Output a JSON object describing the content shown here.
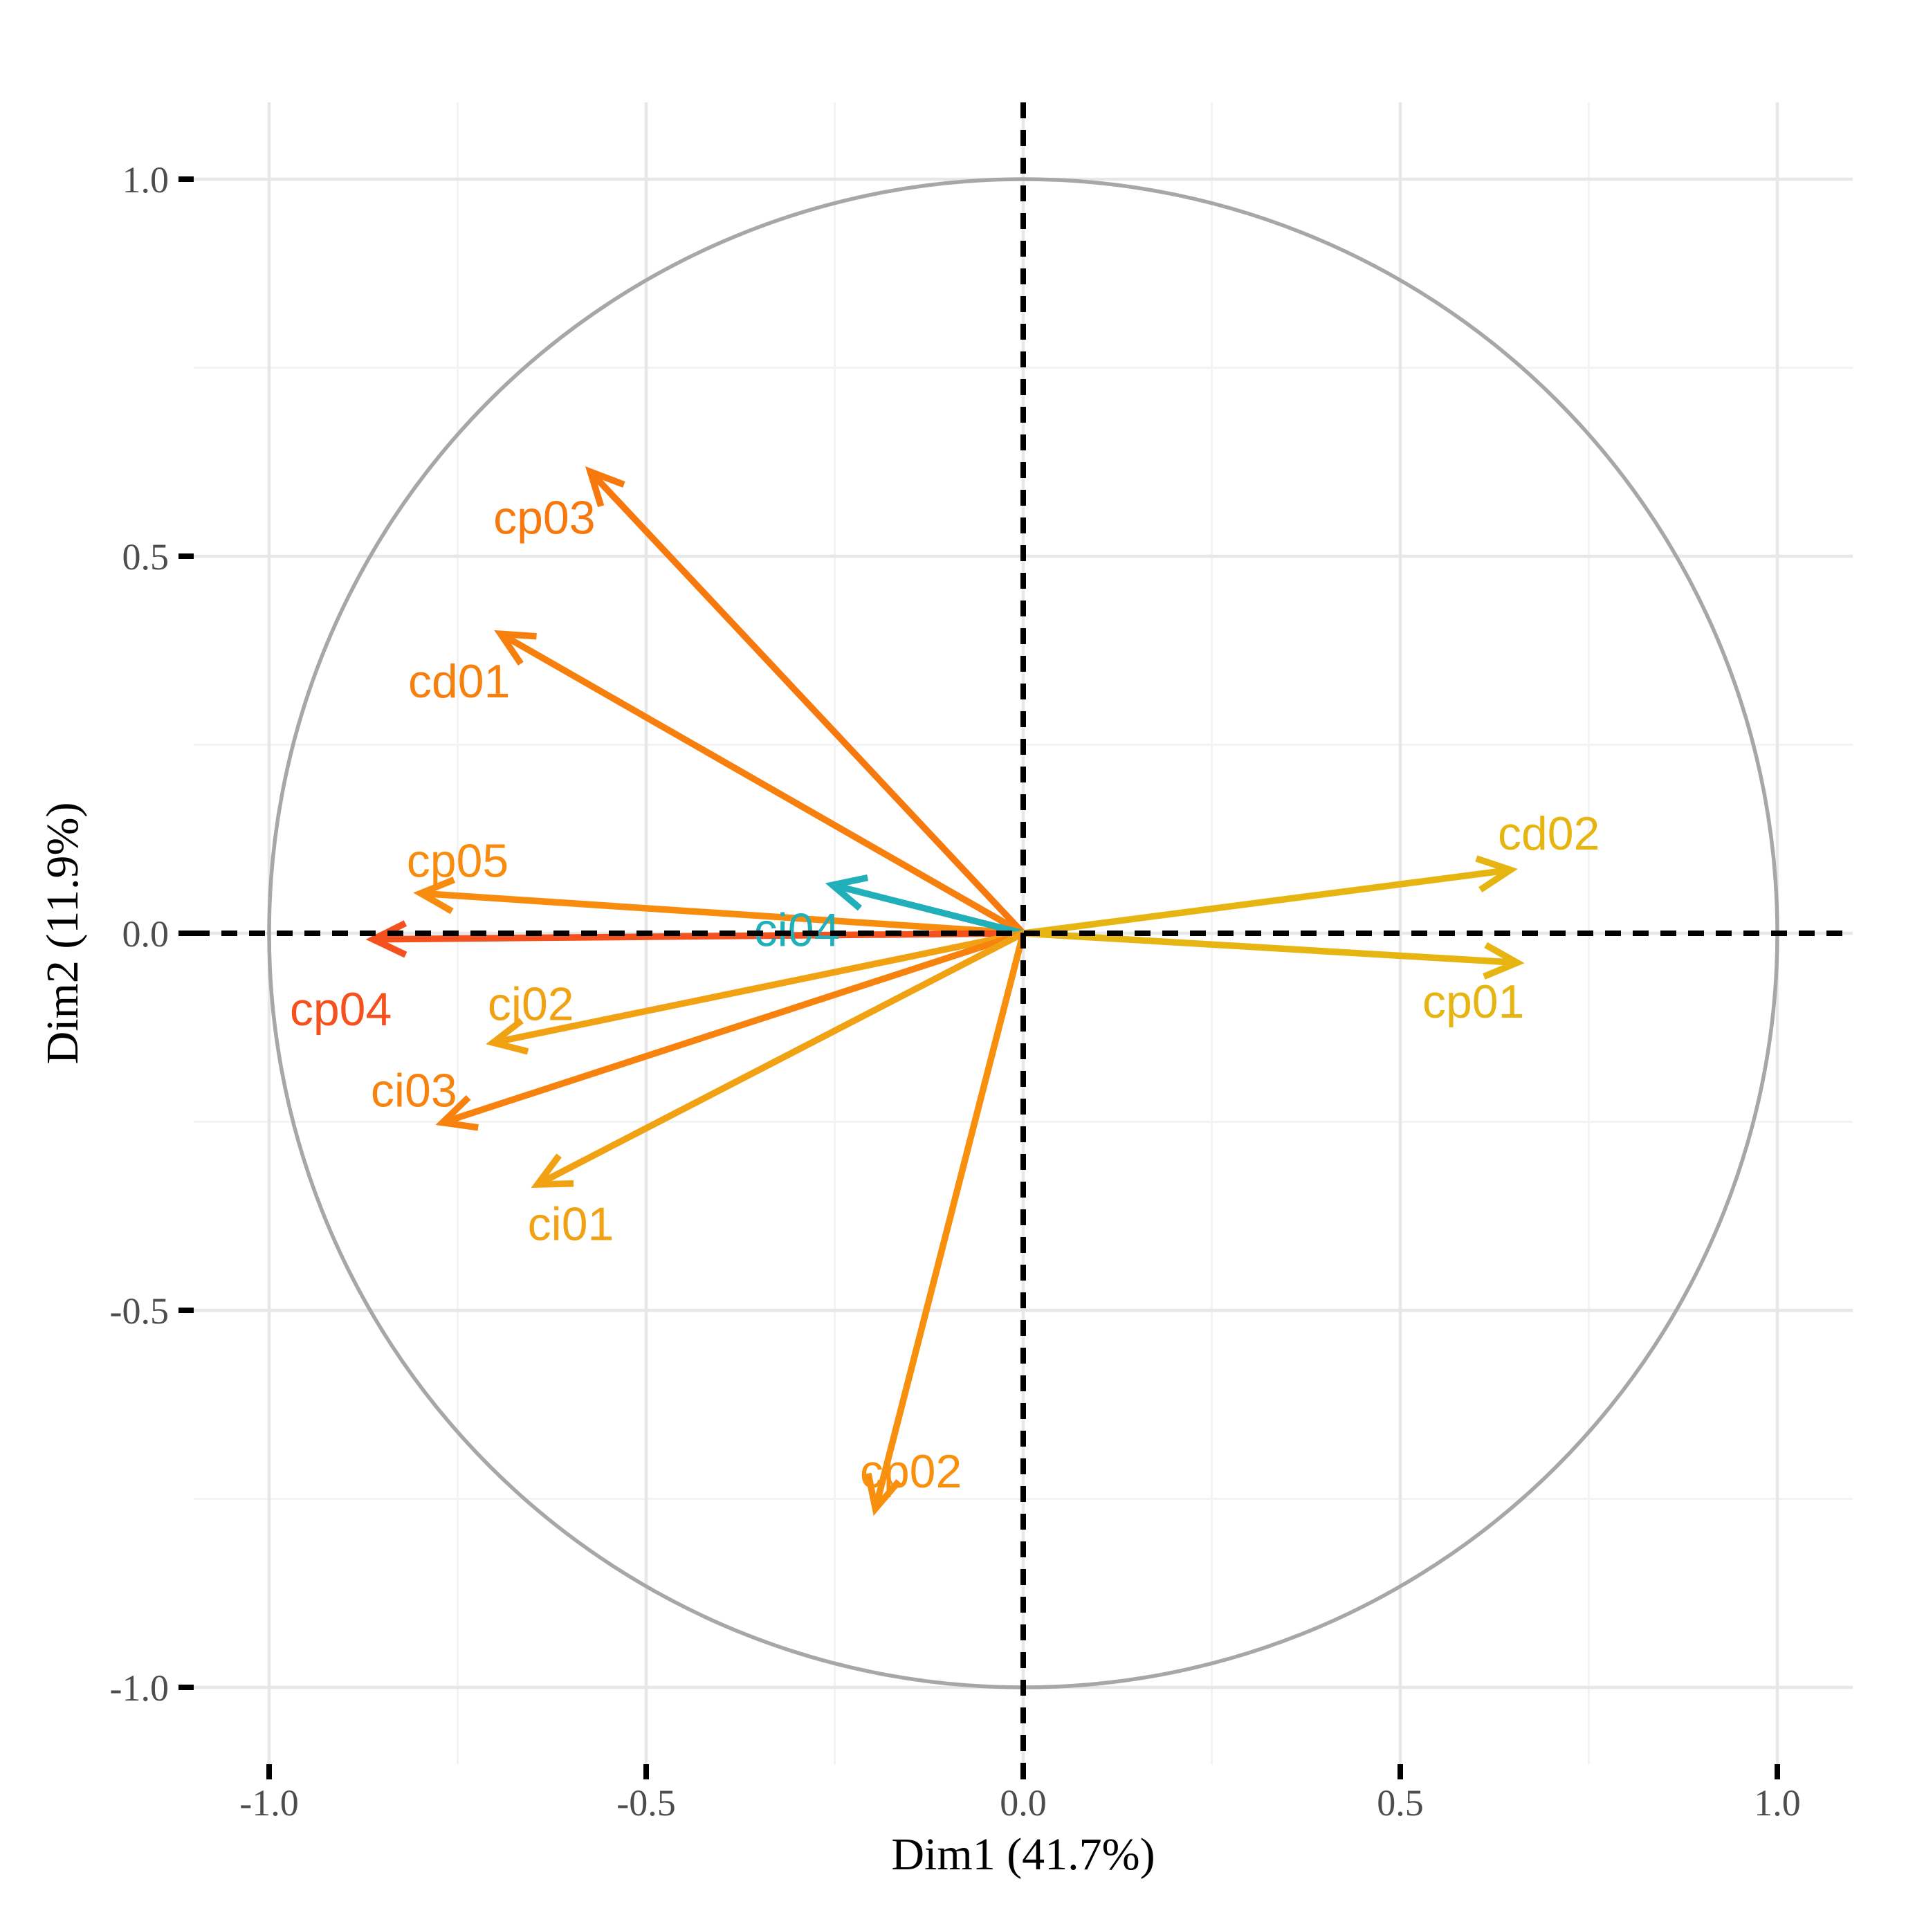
{
  "chart_data": {
    "type": "scatter",
    "subtype": "pca-variables-correlation-circle",
    "title": "",
    "xlabel": "Dim1 (41.7%)",
    "ylabel": "Dim2 (11.9%)",
    "xlim": [
      -1.1,
      1.1
    ],
    "ylim": [
      -1.1,
      1.1
    ],
    "x_ticks": [
      -1.0,
      -0.5,
      0.0,
      0.5,
      1.0
    ],
    "x_tick_labels": [
      "-1.0",
      "-0.5",
      "0.0",
      "0.5",
      "1.0"
    ],
    "y_ticks": [
      -1.0,
      -0.5,
      0.0,
      0.5,
      1.0
    ],
    "y_tick_labels": [
      "-1.0",
      "-0.5",
      "0.0",
      "0.5",
      "1.0"
    ],
    "grid": {
      "major_positions": [
        -1.0,
        -0.5,
        0.0,
        0.5,
        1.0
      ],
      "minor_positions": [
        -0.75,
        -0.25,
        0.25,
        0.75
      ],
      "major_color": "#e7e7e7",
      "minor_color": "#f3f3f3"
    },
    "unit_circle": {
      "radius": 1.0,
      "color": "#a7a7a7"
    },
    "zero_lines": {
      "style": "dashed",
      "color": "#000000"
    },
    "variables": [
      {
        "name": "cp03",
        "x": -0.574,
        "y": 0.612,
        "color": "#f7790d",
        "label_x": -0.635,
        "label_y": 0.552
      },
      {
        "name": "cd01",
        "x": -0.693,
        "y": 0.397,
        "color": "#f77f0d",
        "label_x": -0.748,
        "label_y": 0.335
      },
      {
        "name": "cp05",
        "x": -0.799,
        "y": 0.053,
        "color": "#f88c0e",
        "label_x": -0.75,
        "label_y": 0.097
      },
      {
        "name": "cp04",
        "x": -0.862,
        "y": -0.008,
        "color": "#f4511e",
        "label_x": -0.905,
        "label_y": -0.1
      },
      {
        "name": "ci04",
        "x": -0.253,
        "y": 0.064,
        "color": "#21afba",
        "label_x": -0.3,
        "label_y": 0.005
      },
      {
        "name": "cj02",
        "x": -0.703,
        "y": -0.145,
        "color": "#f1a213",
        "label_x": -0.653,
        "label_y": -0.093
      },
      {
        "name": "ci03",
        "x": -0.77,
        "y": -0.251,
        "color": "#f7820d",
        "label_x": -0.808,
        "label_y": -0.208
      },
      {
        "name": "ci01",
        "x": -0.644,
        "y": -0.333,
        "color": "#f1a213",
        "label_x": -0.6,
        "label_y": -0.385
      },
      {
        "name": "cp02",
        "x": -0.196,
        "y": -0.763,
        "color": "#f8900e",
        "label_x": -0.149,
        "label_y": -0.713
      },
      {
        "name": "cd02",
        "x": 0.646,
        "y": 0.084,
        "color": "#e7b511",
        "label_x": 0.697,
        "label_y": 0.133
      },
      {
        "name": "cp01",
        "x": 0.655,
        "y": -0.039,
        "color": "#e7b511",
        "label_x": 0.597,
        "label_y": -0.09
      }
    ]
  }
}
